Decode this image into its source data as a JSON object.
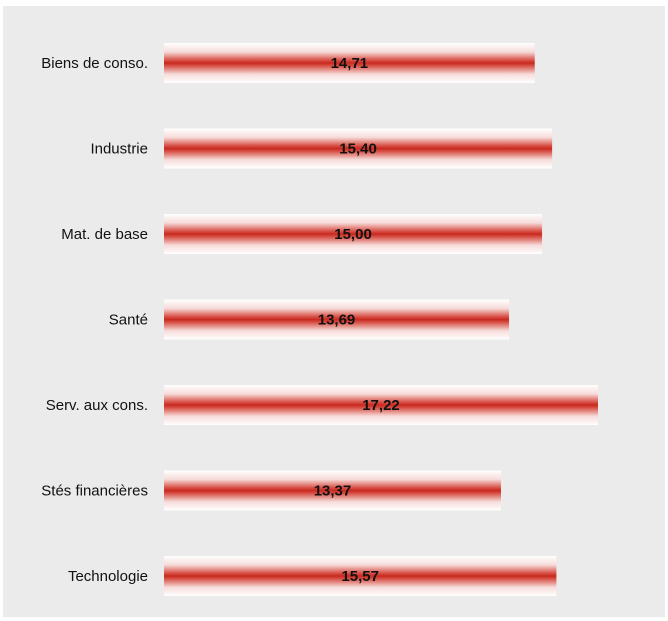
{
  "chart_data": {
    "type": "bar",
    "orientation": "horizontal",
    "categories": [
      "Biens de conso.",
      "Industrie",
      "Mat. de base",
      "Santé",
      "Serv. aux cons.",
      "Stés financières",
      "Technologie"
    ],
    "values": [
      14.71,
      15.4,
      15.0,
      13.69,
      17.22,
      13.37,
      15.57
    ],
    "value_labels": [
      "14,71",
      "15,40",
      "15,00",
      "13,69",
      "17,22",
      "13,37",
      "15,57"
    ],
    "title": "",
    "xlabel": "",
    "ylabel": "",
    "xlim": [
      0,
      17.22
    ],
    "grid": false,
    "legend": "none",
    "colors": {
      "bar": "#c8281e",
      "background": "#ebebeb"
    }
  }
}
